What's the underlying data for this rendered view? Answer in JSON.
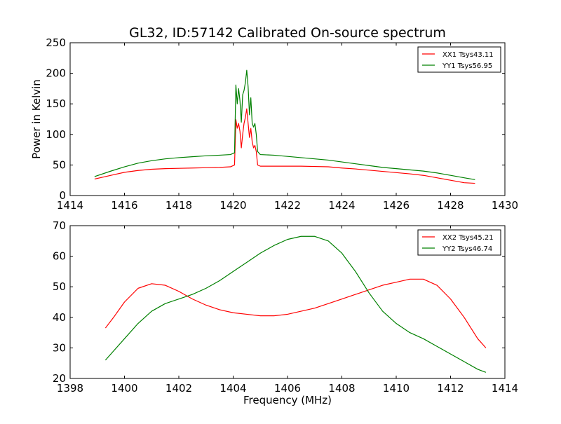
{
  "figure": {
    "title": "GL32, ID:57142 Calibrated On-source spectrum",
    "xlabel": "Frequency (MHz)"
  },
  "chart_data": [
    {
      "type": "line",
      "title": "GL32, ID:57142 Calibrated On-source spectrum",
      "xlabel": "",
      "ylabel": "Power in Kelvin",
      "xlim": [
        1414,
        1430
      ],
      "ylim": [
        0,
        250
      ],
      "xticks": [
        1414,
        1416,
        1418,
        1420,
        1422,
        1424,
        1426,
        1428,
        1430
      ],
      "yticks": [
        0,
        50,
        100,
        150,
        200,
        250
      ],
      "grid": false,
      "legend_position": "top-right",
      "series": [
        {
          "name": "XX1 Tsys43.11",
          "color": "#ff0000",
          "x": [
            1414.9,
            1415.5,
            1416.0,
            1416.5,
            1417.0,
            1417.5,
            1418.0,
            1418.5,
            1419.0,
            1419.5,
            1419.9,
            1420.05,
            1420.1,
            1420.15,
            1420.2,
            1420.25,
            1420.3,
            1420.35,
            1420.4,
            1420.45,
            1420.5,
            1420.55,
            1420.6,
            1420.65,
            1420.7,
            1420.75,
            1420.8,
            1420.85,
            1420.9,
            1421.0,
            1421.5,
            1422.0,
            1422.5,
            1423.0,
            1423.5,
            1424.0,
            1424.5,
            1425.0,
            1425.5,
            1426.0,
            1426.5,
            1427.0,
            1427.5,
            1428.0,
            1428.5,
            1428.9
          ],
          "y": [
            27,
            33,
            38,
            41,
            43,
            44,
            44.5,
            45,
            45.5,
            46,
            47,
            50,
            124,
            110,
            118,
            105,
            78,
            100,
            118,
            128,
            142,
            118,
            95,
            110,
            88,
            78,
            82,
            72,
            50,
            48,
            48,
            48,
            48,
            47.5,
            47,
            45,
            43.5,
            41.5,
            39.5,
            37.5,
            35.5,
            33,
            29,
            25,
            21,
            20
          ]
        },
        {
          "name": "YY1 Tsys56.95",
          "color": "#008000",
          "x": [
            1414.9,
            1415.5,
            1416.0,
            1416.5,
            1417.0,
            1417.5,
            1418.0,
            1418.5,
            1419.0,
            1419.5,
            1419.9,
            1420.05,
            1420.1,
            1420.15,
            1420.2,
            1420.25,
            1420.3,
            1420.35,
            1420.4,
            1420.45,
            1420.5,
            1420.55,
            1420.6,
            1420.65,
            1420.7,
            1420.75,
            1420.8,
            1420.85,
            1420.9,
            1421.0,
            1421.5,
            1422.0,
            1422.5,
            1423.0,
            1423.5,
            1424.0,
            1424.5,
            1425.0,
            1425.5,
            1426.0,
            1426.5,
            1427.0,
            1427.5,
            1428.0,
            1428.5,
            1428.9
          ],
          "y": [
            31,
            40,
            47,
            53,
            57,
            60,
            62,
            63.5,
            65,
            66,
            67,
            70,
            181,
            150,
            175,
            155,
            120,
            165,
            172,
            185,
            205,
            178,
            132,
            160,
            118,
            112,
            118,
            100,
            72,
            67,
            66,
            64,
            62,
            60,
            58,
            55,
            52,
            49,
            46,
            44,
            42,
            40,
            37,
            33,
            29,
            26
          ]
        }
      ]
    },
    {
      "type": "line",
      "title": "",
      "xlabel": "Frequency (MHz)",
      "ylabel": "",
      "xlim": [
        1398,
        1414
      ],
      "ylim": [
        20,
        70
      ],
      "xticks": [
        1398,
        1400,
        1402,
        1404,
        1406,
        1408,
        1410,
        1412,
        1414
      ],
      "yticks": [
        20,
        30,
        40,
        50,
        60,
        70
      ],
      "grid": false,
      "legend_position": "top-right",
      "series": [
        {
          "name": "XX2 Tsys45.21",
          "color": "#ff0000",
          "x": [
            1399.3,
            1399.6,
            1400.0,
            1400.5,
            1401.0,
            1401.5,
            1402.0,
            1402.5,
            1403.0,
            1403.5,
            1404.0,
            1404.5,
            1405.0,
            1405.5,
            1406.0,
            1406.5,
            1407.0,
            1407.5,
            1408.0,
            1408.5,
            1409.0,
            1409.5,
            1410.0,
            1410.5,
            1411.0,
            1411.5,
            1412.0,
            1412.5,
            1413.0,
            1413.3
          ],
          "y": [
            36.5,
            40,
            45,
            49.5,
            51,
            50.5,
            48.5,
            46,
            44,
            42.5,
            41.5,
            41,
            40.5,
            40.5,
            41,
            42,
            43,
            44.5,
            46,
            47.5,
            49,
            50.5,
            51.5,
            52.5,
            52.5,
            50.5,
            46,
            40,
            33,
            30
          ]
        },
        {
          "name": "YY2 Tsys46.74",
          "color": "#008000",
          "x": [
            1399.3,
            1399.6,
            1400.0,
            1400.5,
            1401.0,
            1401.5,
            1402.0,
            1402.5,
            1403.0,
            1403.5,
            1404.0,
            1404.5,
            1405.0,
            1405.5,
            1406.0,
            1406.5,
            1407.0,
            1407.5,
            1408.0,
            1408.5,
            1409.0,
            1409.5,
            1410.0,
            1410.5,
            1411.0,
            1411.5,
            1412.0,
            1412.5,
            1413.0,
            1413.3
          ],
          "y": [
            26,
            29,
            33,
            38,
            42,
            44.5,
            46,
            47.5,
            49.5,
            52,
            55,
            58,
            61,
            63.5,
            65.5,
            66.5,
            66.5,
            65,
            61,
            55,
            48,
            42,
            38,
            35,
            33,
            30.5,
            28,
            25.5,
            23,
            22
          ]
        }
      ]
    }
  ]
}
